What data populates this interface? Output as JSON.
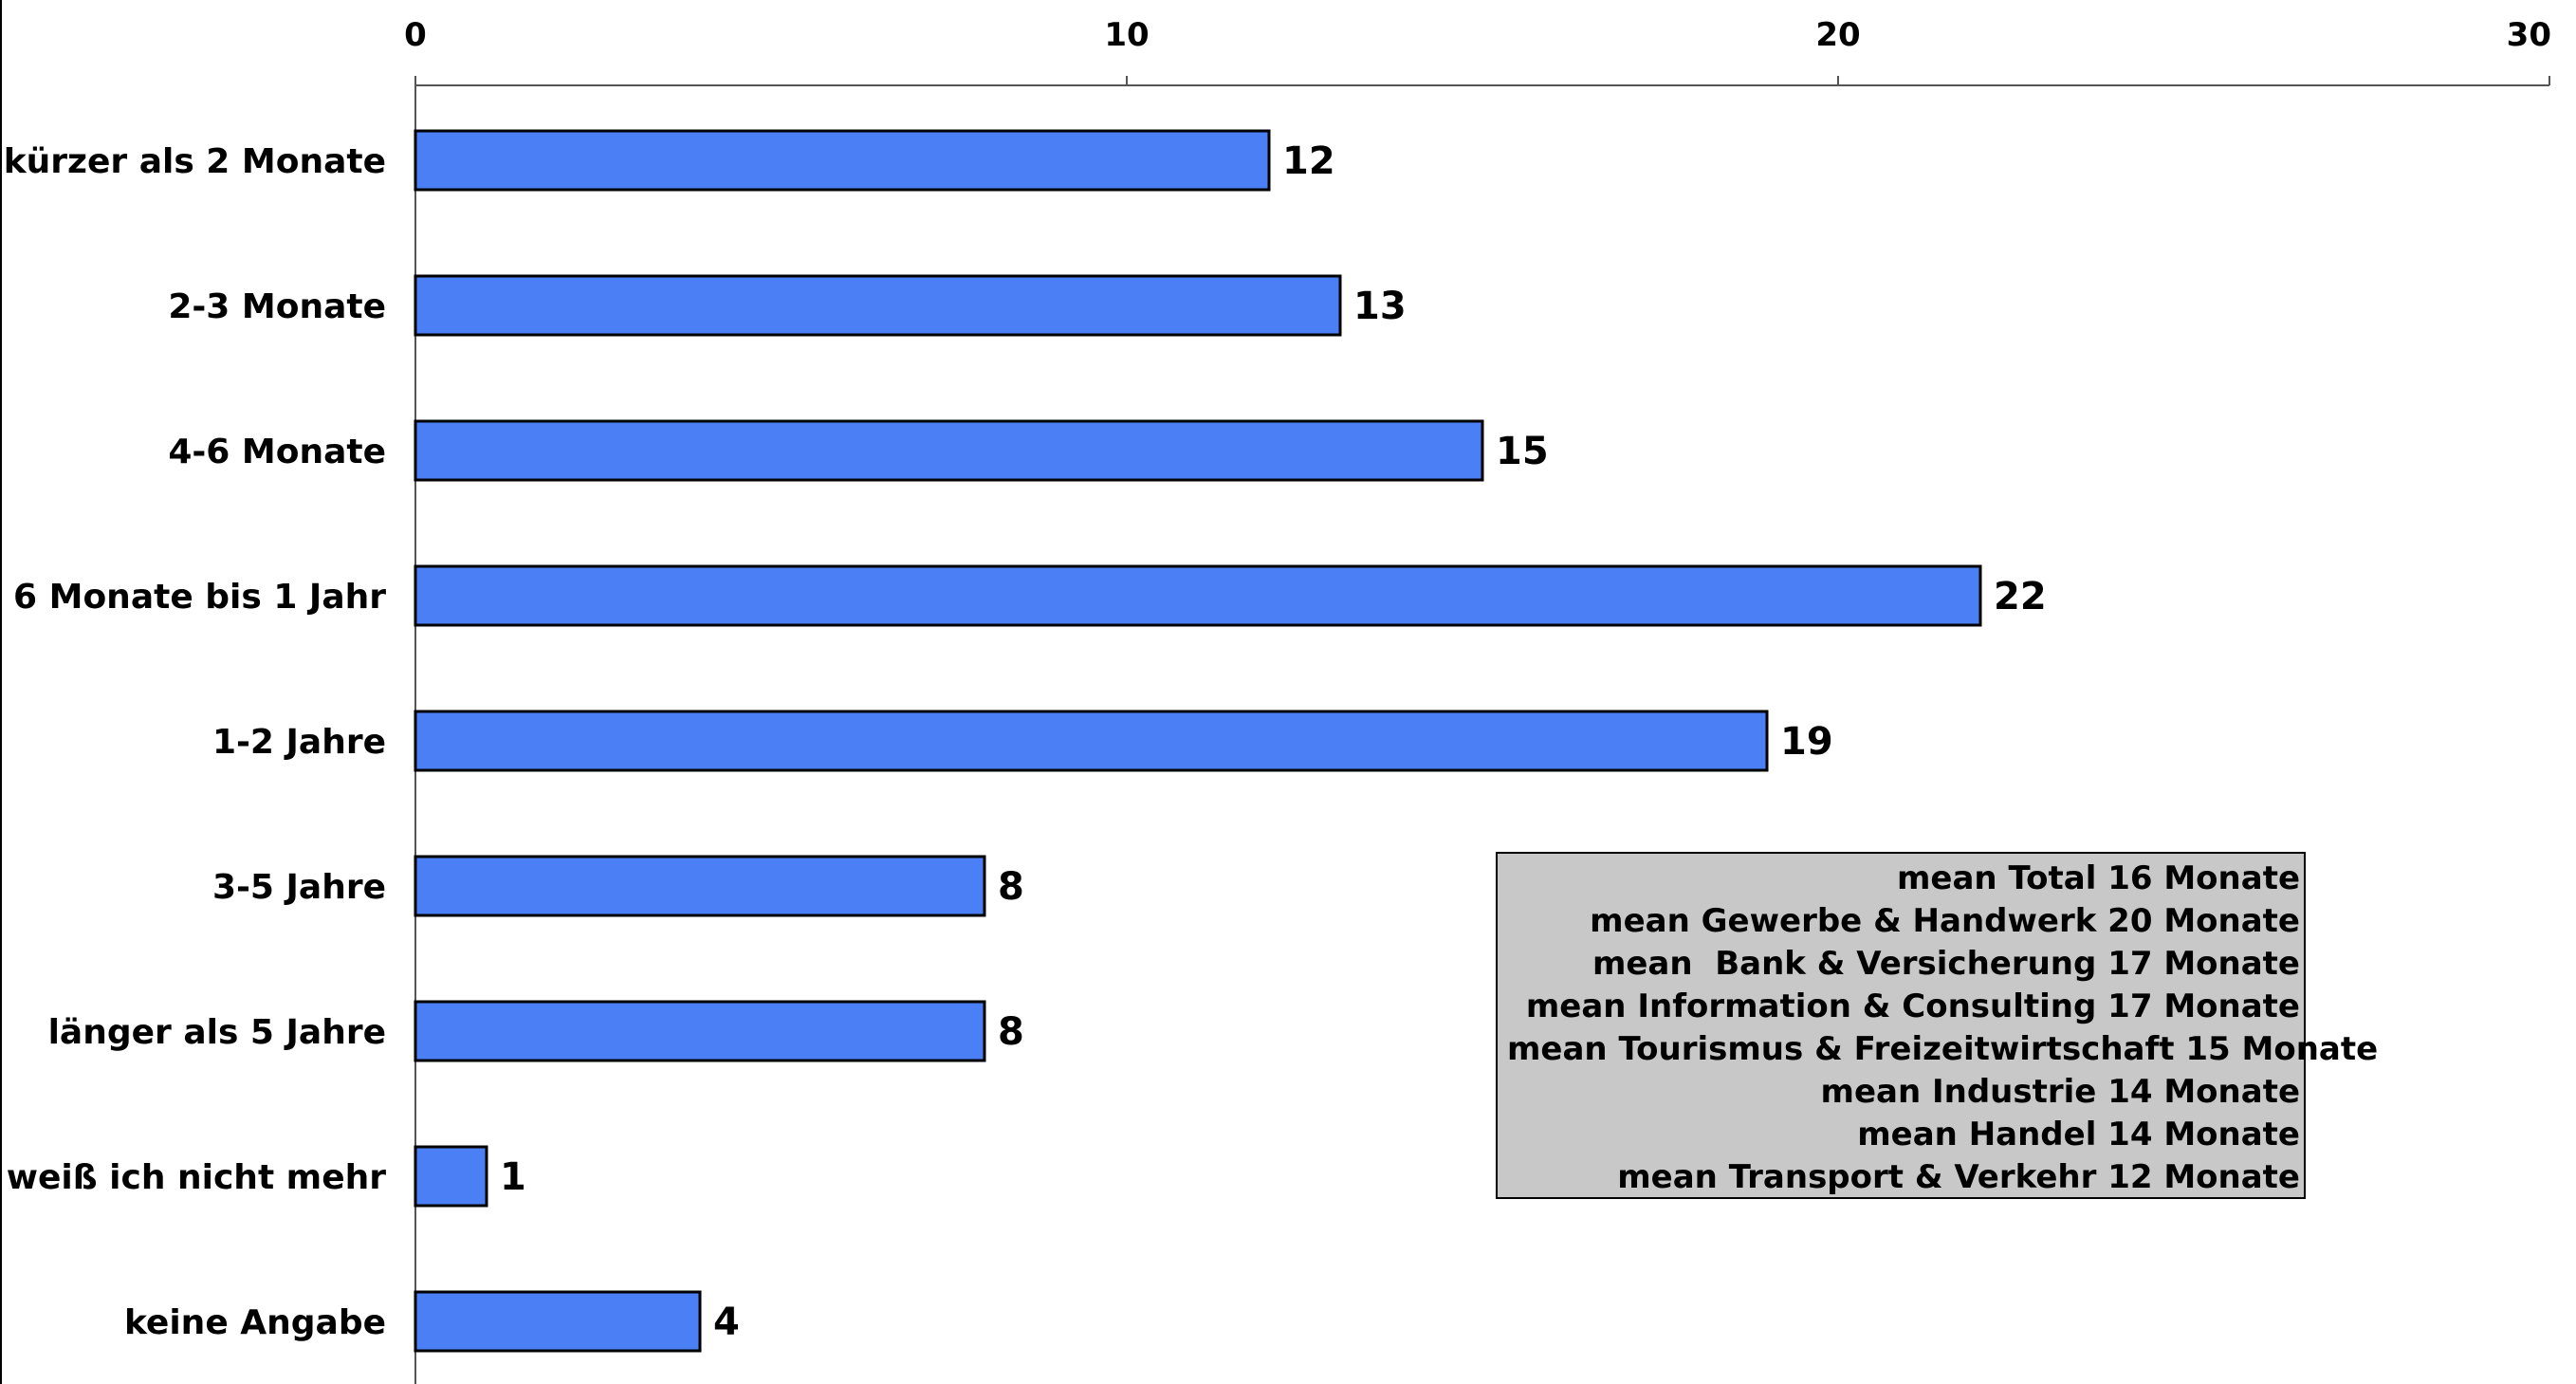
{
  "chart_data": {
    "type": "bar",
    "orientation": "horizontal",
    "categories": [
      "kürzer als 2 Monate",
      "2-3 Monate",
      "4-6 Monate",
      "6 Monate bis 1 Jahr",
      "1-2 Jahre",
      "3-5 Jahre",
      "länger als 5 Jahre",
      "weiß ich nicht mehr",
      "keine Angabe"
    ],
    "values": [
      12,
      13,
      15,
      22,
      19,
      8,
      8,
      1,
      4
    ],
    "xlim": [
      0,
      30
    ],
    "xticks": [
      0,
      10,
      20,
      30
    ],
    "x_axis_position": "top",
    "bar_color": "#4a7ff5",
    "bar_border_color": "#000000",
    "grid": false,
    "annotation_lines": [
      "mean Total 16 Monate",
      "mean Gewerbe & Handwerk 20 Monate",
      "mean  Bank & Versicherung 17 Monate",
      "mean Information & Consulting 17 Monate",
      "mean Tourismus & Freizeitwirtschaft 15 Monate",
      "mean Industrie 14 Monate",
      "mean Handel 14 Monate",
      "mean Transport & Verkehr 12 Monate"
    ],
    "annotation_background": "#c8c8c8"
  }
}
